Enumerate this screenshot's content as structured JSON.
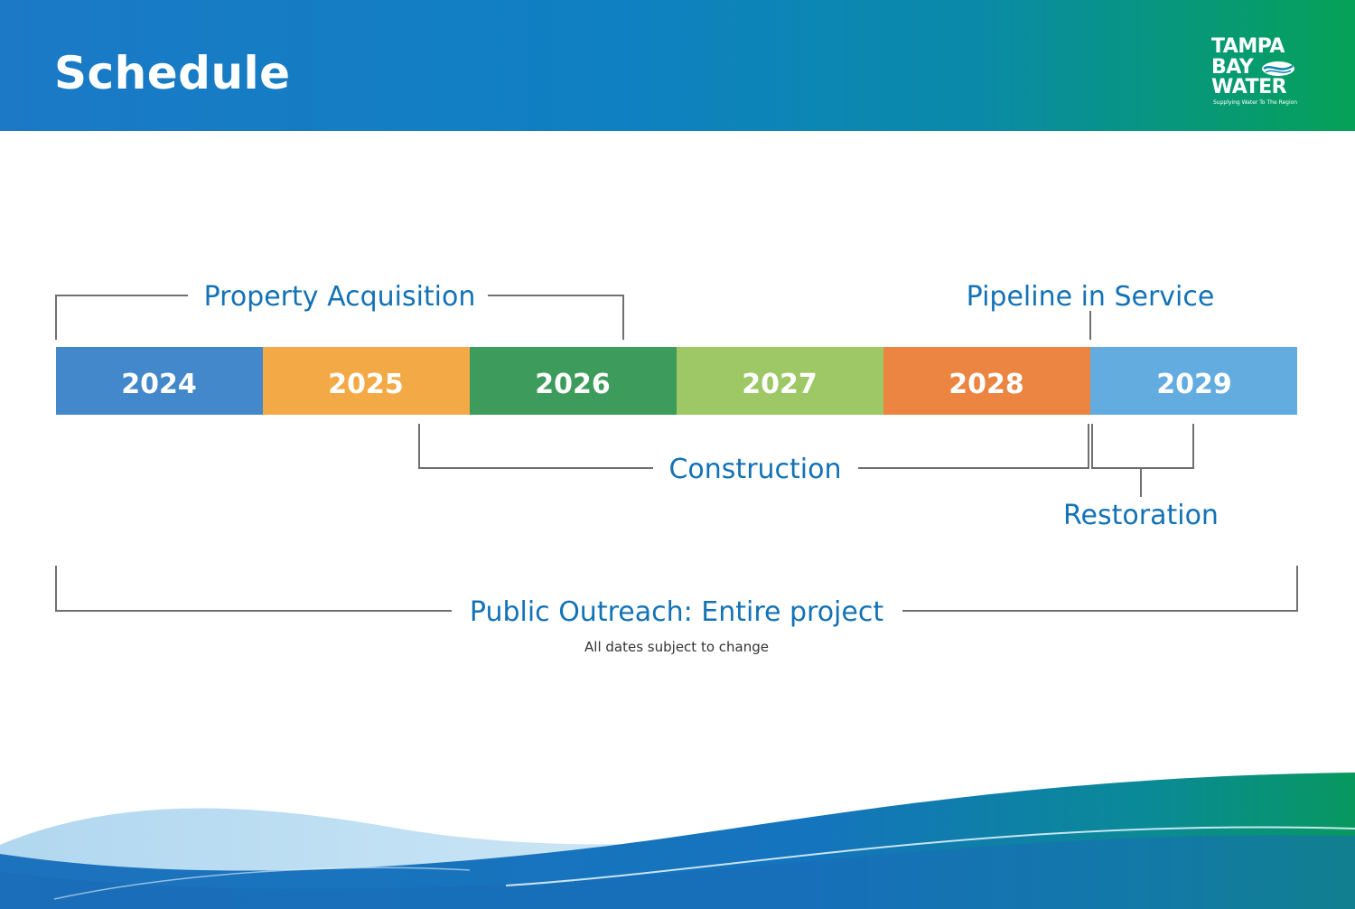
{
  "header": {
    "title": "Schedule",
    "logo": {
      "line1": "TAMPA",
      "line2": "BAY",
      "line3": "WATER",
      "tagline": "Supplying Water To The Region"
    }
  },
  "timeline": {
    "years": [
      "2024",
      "2025",
      "2026",
      "2027",
      "2028",
      "2029"
    ],
    "year_colors": [
      "#4388cb",
      "#f4a947",
      "#3d9c5b",
      "#9dc865",
      "#ec8442",
      "#62acdf"
    ],
    "phases": {
      "property_acquisition": "Property Acquisition",
      "pipeline_in_service": "Pipeline in Service",
      "construction": "Construction",
      "restoration": "Restoration",
      "public_outreach": "Public Outreach: Entire project"
    },
    "note": "All dates subject to change"
  },
  "colors": {
    "label_blue": "#1372b6",
    "bracket_gray": "#6f6f6f",
    "header_start": "#1b79c6",
    "header_end": "#06a158"
  },
  "icons": {
    "logo_wave": "water-wave-icon"
  }
}
